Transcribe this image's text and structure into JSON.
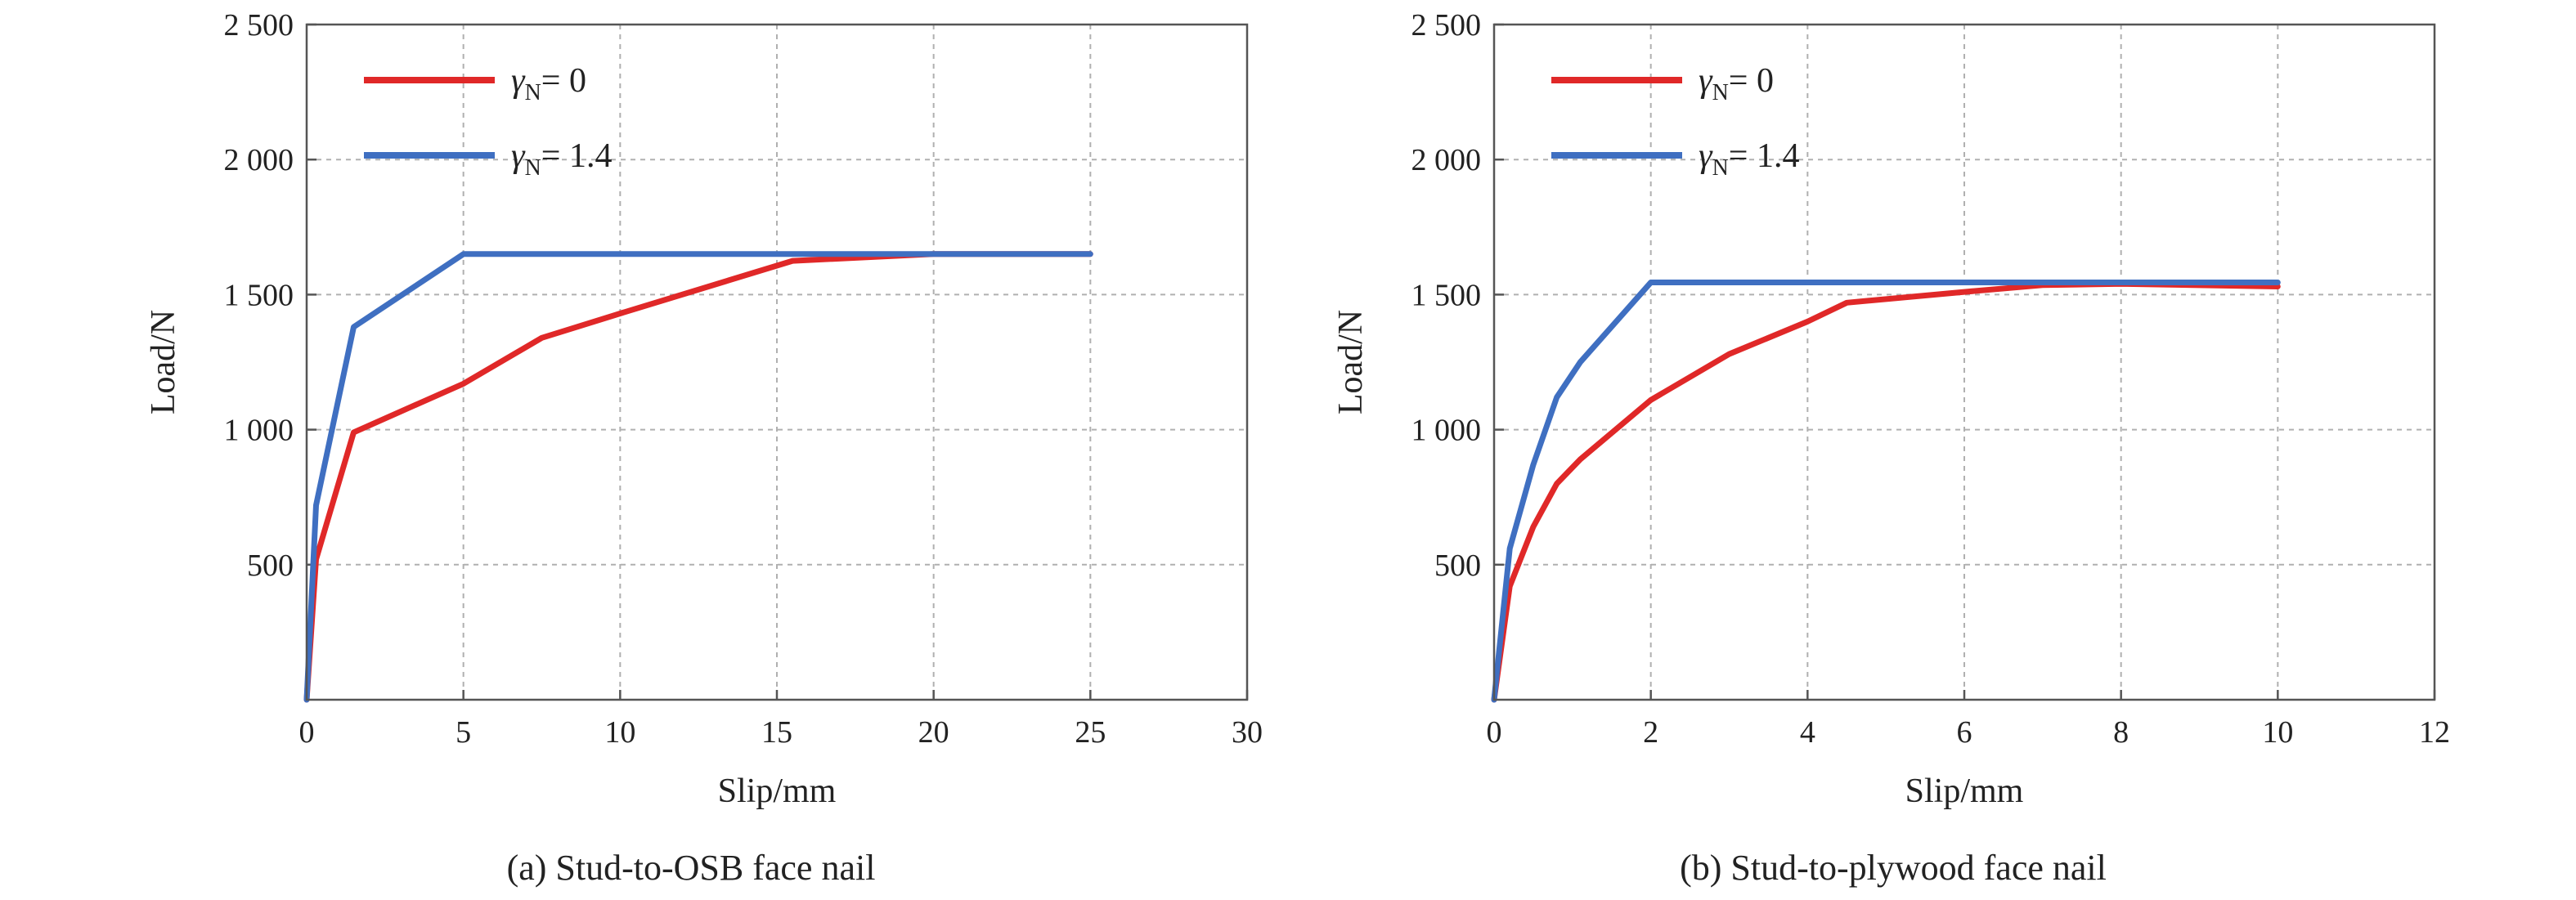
{
  "colors": {
    "gamma0": "#e02828",
    "gamma14": "#3f6fc1"
  },
  "chart_data": [
    {
      "type": "line",
      "caption": "(a) Stud-to-OSB face nail",
      "xlabel": "Slip/mm",
      "ylabel": "Load/N",
      "xlim": [
        0,
        30
      ],
      "ylim": [
        0,
        2500
      ],
      "x_ticks": [
        0,
        5,
        10,
        15,
        20,
        25,
        30
      ],
      "x_tick_labels": [
        "0",
        "5",
        "10",
        "15",
        "20",
        "25",
        "30"
      ],
      "y_ticks": [
        500,
        1000,
        1500,
        2000,
        2500
      ],
      "y_tick_labels": [
        "500",
        "1 000",
        "1 500",
        "2 000",
        "2 500"
      ],
      "grid": true,
      "legend_position": "top-left",
      "series": [
        {
          "name": "γN= 0",
          "name_symbol": "γ",
          "name_sub": "N",
          "name_rest": "= 0",
          "color_key": "gamma0",
          "x": [
            0,
            0.3,
            1.5,
            5,
            7.5,
            10,
            15.5,
            20,
            25
          ],
          "y": [
            0,
            520,
            990,
            1170,
            1340,
            1430,
            1625,
            1650,
            1650
          ]
        },
        {
          "name": "γN= 1.4",
          "name_symbol": "γ",
          "name_sub": "N",
          "name_rest": "= 1.4",
          "color_key": "gamma14",
          "x": [
            0,
            0.3,
            1.5,
            5,
            25
          ],
          "y": [
            0,
            720,
            1380,
            1650,
            1650
          ]
        }
      ]
    },
    {
      "type": "line",
      "caption": "(b) Stud-to-plywood face nail",
      "xlabel": "Slip/mm",
      "ylabel": "Load/N",
      "xlim": [
        0,
        12
      ],
      "ylim": [
        0,
        2500
      ],
      "x_ticks": [
        0,
        2,
        4,
        6,
        8,
        10,
        12
      ],
      "x_tick_labels": [
        "0",
        "2",
        "4",
        "6",
        "8",
        "10",
        "12"
      ],
      "y_ticks": [
        500,
        1000,
        1500,
        2000,
        2500
      ],
      "y_tick_labels": [
        "500",
        "1 000",
        "1 500",
        "2 000",
        "2 500"
      ],
      "grid": true,
      "legend_position": "top-left",
      "series": [
        {
          "name": "γN= 0",
          "name_symbol": "γ",
          "name_sub": "N",
          "name_rest": "= 0",
          "color_key": "gamma0",
          "x": [
            0,
            0.2,
            0.5,
            0.8,
            1.1,
            2,
            3,
            4,
            4.5,
            6,
            7,
            8,
            10
          ],
          "y": [
            0,
            420,
            640,
            800,
            890,
            1110,
            1280,
            1400,
            1470,
            1510,
            1535,
            1540,
            1530
          ]
        },
        {
          "name": "γN= 1.4",
          "name_symbol": "γ",
          "name_sub": "N",
          "name_rest": "= 1.4",
          "color_key": "gamma14",
          "x": [
            0,
            0.2,
            0.5,
            0.8,
            1.1,
            2,
            10
          ],
          "y": [
            0,
            560,
            870,
            1120,
            1250,
            1545,
            1545
          ]
        }
      ]
    }
  ]
}
